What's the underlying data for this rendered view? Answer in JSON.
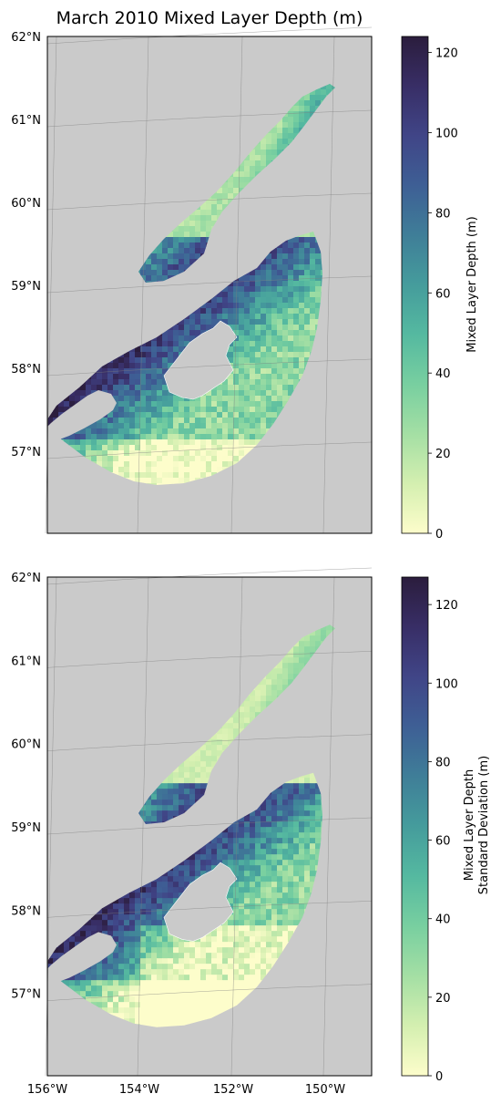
{
  "title": "March 2010 Mixed Layer Depth (m)",
  "lat_labels": [
    "62°N",
    "61°N",
    "60°N",
    "59°N",
    "58°N",
    "57°N"
  ],
  "lon_labels": [
    "156°W",
    "154°W",
    "152°W",
    "150°W"
  ],
  "colors": {
    "land": "#cacaca",
    "land_edge": "#ffffff",
    "grid": "#7f7f7f",
    "colormap": [
      "#fdfdcb",
      "#d4efb0",
      "#a4dfa4",
      "#78cfa0",
      "#55b9a0",
      "#459c9c",
      "#3f7e98",
      "#3e5f95",
      "#404587",
      "#382e66",
      "#2b1d3d"
    ]
  },
  "panels": [
    {
      "id": "mean",
      "colorbar_label_lines": [
        "Mixed Layer Depth (m)"
      ],
      "colorbar_ticks": [
        "0",
        "20",
        "40",
        "60",
        "80",
        "100",
        "120"
      ],
      "colorbar_max": 124
    },
    {
      "id": "std",
      "colorbar_label_lines": [
        "Mixed Layer Depth",
        "Standard Deviation (m)"
      ],
      "colorbar_ticks": [
        "0",
        "20",
        "40",
        "60",
        "80",
        "100",
        "120"
      ],
      "colorbar_max": 127
    }
  ]
}
